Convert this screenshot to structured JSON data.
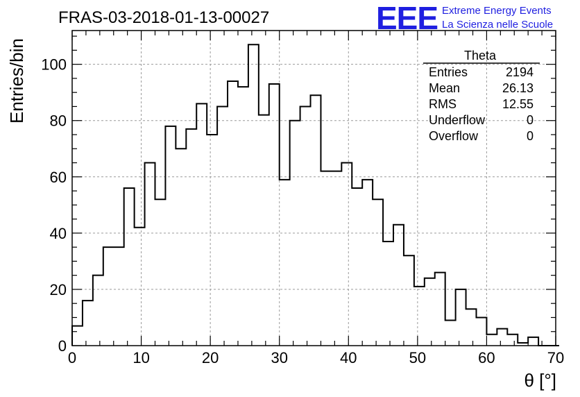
{
  "title": "FRAS-03-2018-01-13-00027",
  "logo": {
    "mark": "EEE",
    "line1": "Extreme Energy Events",
    "line2": "La Scienza nelle Scuole",
    "color": "#1f1fe0"
  },
  "stats": {
    "name": "Theta",
    "rows": [
      {
        "label": "Entries",
        "value": "2194"
      },
      {
        "label": "Mean",
        "value": "26.13"
      },
      {
        "label": "RMS",
        "value": "12.55"
      },
      {
        "label": "Underflow",
        "value": "0"
      },
      {
        "label": "Overflow",
        "value": "0"
      }
    ]
  },
  "chart_data": {
    "type": "bar",
    "style": "step-histogram",
    "xlabel": "θ [°]",
    "ylabel": "Entries/bin",
    "xlim": [
      0,
      70
    ],
    "ylim": [
      0,
      112
    ],
    "grid": true,
    "xticks": [
      0,
      10,
      20,
      30,
      40,
      50,
      60,
      70
    ],
    "yticks": [
      0,
      20,
      40,
      60,
      80,
      100
    ],
    "bin_width": 1.5,
    "bin_start": 0,
    "values": [
      7,
      16,
      25,
      35,
      35,
      56,
      42,
      65,
      52,
      78,
      70,
      77,
      86,
      75,
      85,
      94,
      92,
      107,
      82,
      93,
      59,
      80,
      85,
      89,
      62,
      62,
      65,
      56,
      59,
      52,
      37,
      43,
      32,
      21,
      24,
      26,
      9,
      20,
      13,
      10,
      4,
      6,
      4,
      1,
      3,
      0,
      0
    ]
  }
}
